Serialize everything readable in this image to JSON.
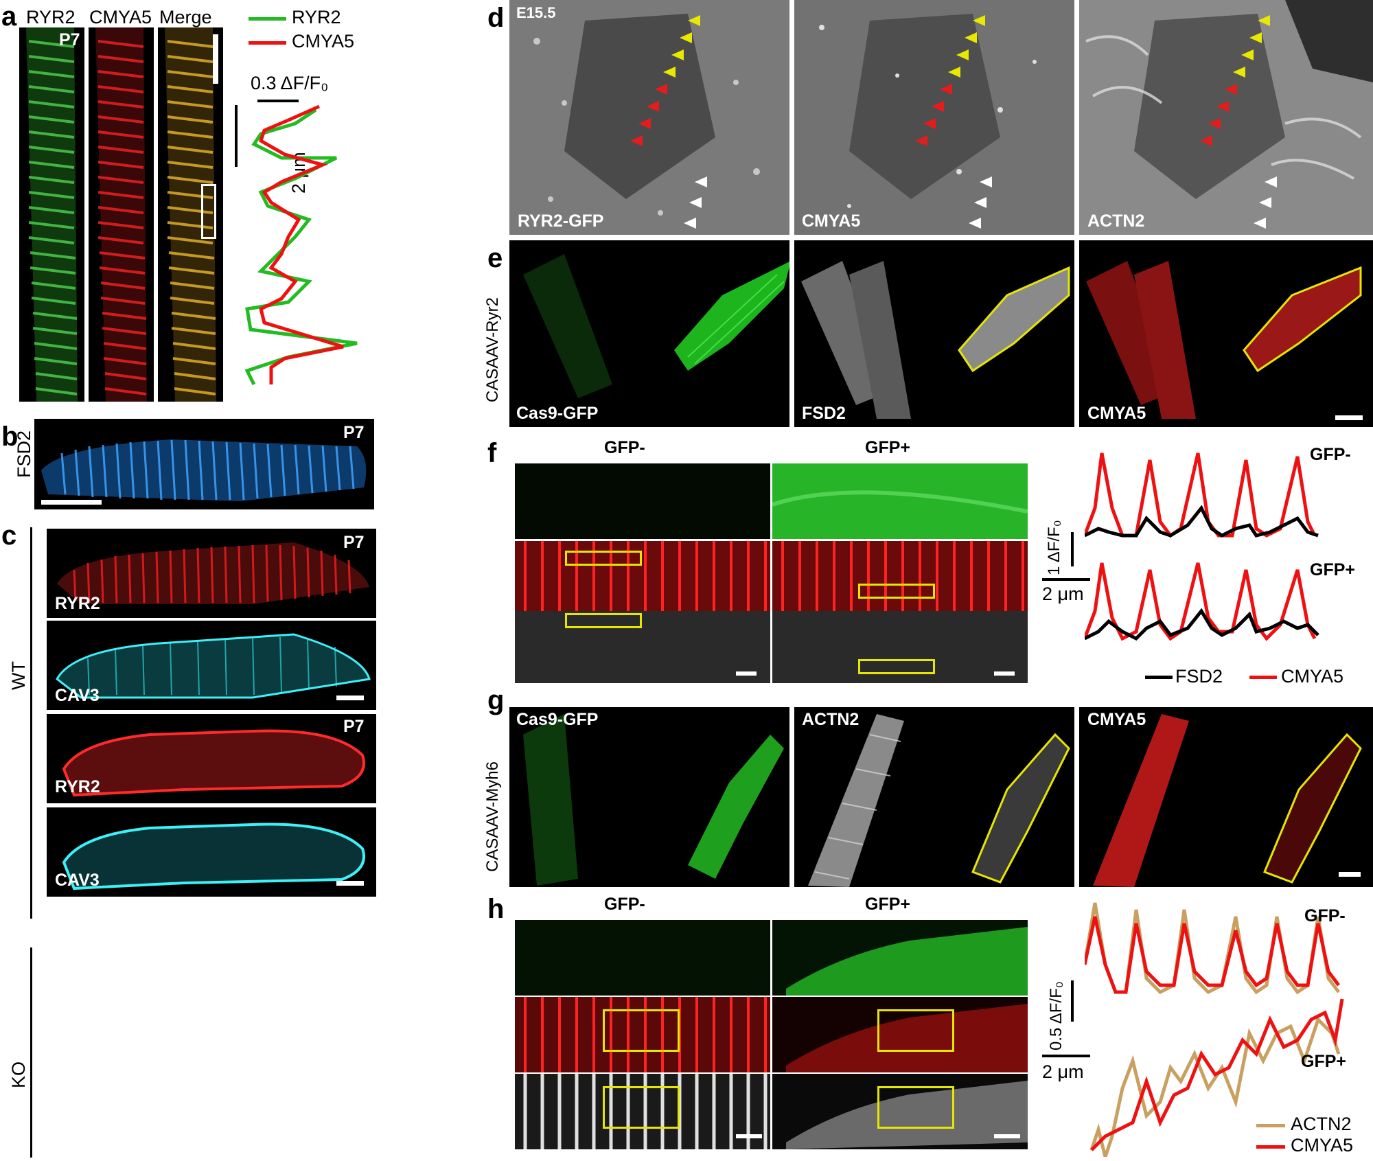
{
  "panels": {
    "a": {
      "letter": "a",
      "col1": "RYR2",
      "col2": "CMYA5",
      "col3": "Merge",
      "age": "P7",
      "legend": [
        {
          "name": "RYR2",
          "color": "#22bb22"
        },
        {
          "name": "CMYA5",
          "color": "#ee1111"
        }
      ],
      "scale_y": "0.3 ΔF/F₀",
      "scale_x": "2 μm"
    },
    "b": {
      "letter": "b",
      "side": "FSD2",
      "age": "P7"
    },
    "c": {
      "letter": "c",
      "wt": "WT",
      "ko": "KO",
      "age_wt": "P7",
      "age_ko": "P7",
      "wt_top": "RYR2",
      "wt_bottom": "CAV3",
      "ko_top": "RYR2",
      "ko_bottom": "CAV3"
    },
    "d": {
      "letter": "d",
      "stage": "E15.5",
      "l1": "RYR2-GFP",
      "l2": "CMYA5",
      "l3": "ACTN2"
    },
    "e": {
      "letter": "e",
      "side": "CASAAV-Ryr2",
      "l1": "Cas9-GFP",
      "l2": "FSD2",
      "l3": "CMYA5"
    },
    "f": {
      "letter": "f",
      "col_neg": "GFP-",
      "col_pos": "GFP+",
      "trace_neg": "GFP-",
      "trace_pos": "GFP+",
      "scale_y": "1 ΔF/F₀",
      "scale_x": "2 μm",
      "legend": [
        {
          "name": "FSD2",
          "color": "#000000"
        },
        {
          "name": "CMYA5",
          "color": "#ee1111"
        }
      ]
    },
    "g": {
      "letter": "g",
      "side": "CASAAV-Myh6",
      "l1": "Cas9-GFP",
      "l2": "ACTN2",
      "l3": "CMYA5"
    },
    "h": {
      "letter": "h",
      "col_neg": "GFP-",
      "col_pos": "GFP+",
      "trace_neg": "GFP-",
      "trace_pos": "GFP+",
      "scale_y": "0.5 ΔF/F₀",
      "scale_x": "2 μm",
      "legend": [
        {
          "name": "ACTN2",
          "color": "#c8a060"
        },
        {
          "name": "CMYA5",
          "color": "#ee1111"
        }
      ]
    }
  }
}
